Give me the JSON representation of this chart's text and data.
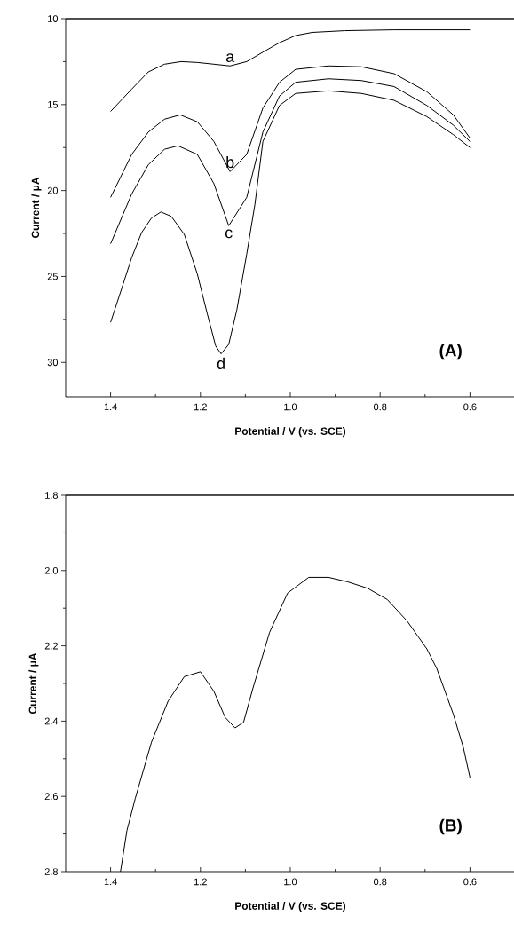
{
  "chart_data": [
    {
      "type": "line",
      "xlabel": "Potential / V (vs. SCE)",
      "ylabel": "Current / μA",
      "xlim": [
        1.5,
        0.5
      ],
      "ylim": [
        32,
        10
      ],
      "xticks": [
        1.4,
        {
          "value": 1.3,
          "label": null
        },
        1.2,
        {
          "value": 1.1,
          "label": null
        },
        {
          "value": 1,
          "label": "1.0"
        },
        {
          "value": 0.9,
          "label": null
        },
        0.8,
        {
          "value": 0.7,
          "label": null
        },
        0.6
      ],
      "yticks": [
        10,
        {
          "value": 12.5,
          "label": null
        },
        15,
        {
          "value": 17.5,
          "label": null
        },
        20,
        {
          "value": 22.5,
          "label": null
        },
        25,
        {
          "value": 27.5,
          "label": null
        },
        30
      ],
      "marker": "none",
      "line_style": "solid",
      "annotations": [
        "(A)"
      ],
      "series": [
        {
          "name": "a",
          "color": "#000000",
          "x": [
            1.4,
            1.353,
            1.316,
            1.28,
            1.243,
            1.207,
            1.17,
            1.134,
            1.097,
            1.061,
            1.024,
            0.988,
            0.951,
            0.878,
            0.769,
            0.6
          ],
          "values": [
            15.4,
            14.1,
            13.1,
            12.65,
            12.5,
            12.55,
            12.65,
            12.75,
            12.5,
            11.95,
            11.4,
            10.98,
            10.8,
            10.7,
            10.65,
            10.65
          ]
        },
        {
          "name": "b",
          "color": "#000000",
          "x": [
            1.4,
            1.353,
            1.316,
            1.28,
            1.245,
            1.207,
            1.17,
            1.134,
            1.097,
            1.061,
            1.024,
            0.988,
            0.915,
            0.842,
            0.769,
            0.696,
            0.637,
            0.6
          ],
          "values": [
            20.4,
            17.9,
            16.6,
            15.85,
            15.6,
            16.0,
            17.15,
            18.9,
            17.9,
            15.2,
            13.7,
            12.95,
            12.75,
            12.8,
            13.2,
            14.25,
            15.6,
            16.95
          ]
        },
        {
          "name": "c",
          "color": "#000000",
          "x": [
            1.4,
            1.353,
            1.316,
            1.28,
            1.25,
            1.207,
            1.17,
            1.137,
            1.097,
            1.061,
            1.024,
            0.988,
            0.915,
            0.842,
            0.769,
            0.696,
            0.637,
            0.6
          ],
          "values": [
            23.1,
            20.2,
            18.5,
            17.6,
            17.4,
            17.9,
            19.6,
            22.05,
            20.4,
            16.6,
            14.5,
            13.7,
            13.5,
            13.6,
            13.95,
            15.05,
            16.2,
            17.15
          ]
        },
        {
          "name": "d",
          "color": "#000000",
          "x": [
            1.4,
            1.374,
            1.353,
            1.331,
            1.309,
            1.288,
            1.265,
            1.236,
            1.207,
            1.185,
            1.166,
            1.154,
            1.137,
            1.119,
            1.097,
            1.079,
            1.061,
            1.024,
            0.988,
            0.915,
            0.842,
            0.769,
            0.696,
            0.637,
            0.6
          ],
          "values": [
            27.67,
            25.6,
            23.9,
            22.45,
            21.6,
            21.25,
            21.5,
            22.55,
            24.85,
            27.15,
            29.05,
            29.5,
            28.95,
            26.95,
            23.7,
            20.85,
            17.15,
            15.05,
            14.35,
            14.2,
            14.35,
            14.75,
            15.7,
            16.75,
            17.5
          ]
        }
      ]
    },
    {
      "type": "line",
      "xlabel": "Potential / V (vs. SCE)",
      "ylabel": "Current / μA",
      "xlim": [
        1.5,
        0.5
      ],
      "ylim": [
        2.8,
        1.8
      ],
      "xticks": [
        1.4,
        {
          "value": 1.3,
          "label": null
        },
        1.2,
        {
          "value": 1.1,
          "label": null
        },
        {
          "value": 1,
          "label": "1.0"
        },
        {
          "value": 0.9,
          "label": null
        },
        0.8,
        {
          "value": 0.7,
          "label": null
        },
        0.6
      ],
      "yticks": [
        1.8,
        {
          "value": 1.9,
          "label": null
        },
        {
          "value": 2,
          "label": "2.0"
        },
        {
          "value": 2.1,
          "label": null
        },
        2.2,
        {
          "value": 2.3,
          "label": null
        },
        2.4,
        {
          "value": 2.5,
          "label": null
        },
        2.6,
        {
          "value": 2.7,
          "label": null
        },
        2.8
      ],
      "marker": "none",
      "line_style": "solid",
      "annotations": [
        "(B)"
      ],
      "series": [
        {
          "color": "#000000",
          "x": [
            1.378,
            1.3635,
            1.345,
            1.309,
            1.272,
            1.236,
            1.2,
            1.17,
            1.145,
            1.123,
            1.104,
            1.083,
            1.046,
            1.006,
            0.959,
            0.915,
            0.872,
            0.828,
            0.784,
            0.74,
            0.696,
            0.674,
            0.637,
            0.615,
            0.6
          ],
          "values": [
            2.8,
            2.69,
            2.605,
            2.456,
            2.347,
            2.282,
            2.269,
            2.321,
            2.39,
            2.418,
            2.403,
            2.312,
            2.164,
            2.06,
            2.018,
            2.018,
            2.03,
            2.047,
            2.077,
            2.134,
            2.208,
            2.26,
            2.382,
            2.469,
            2.55
          ]
        }
      ]
    }
  ]
}
